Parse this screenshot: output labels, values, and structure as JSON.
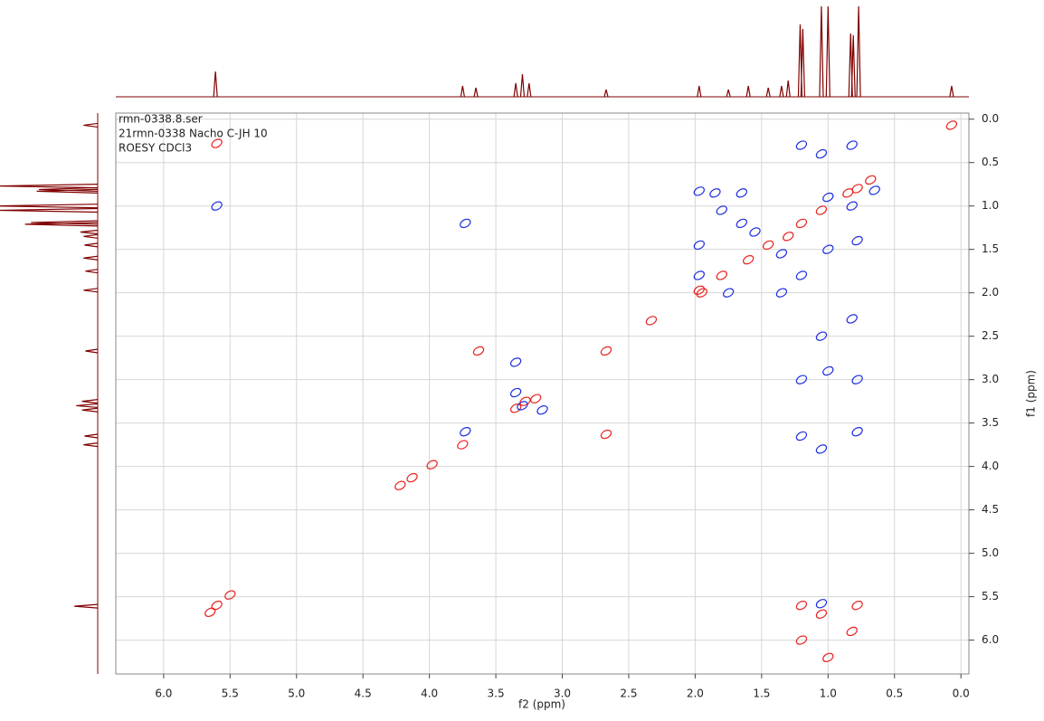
{
  "chart_data": {
    "type": "scatter",
    "info_lines": [
      "rmn-0338.8.ser",
      "21rmn-0338 Nacho C-JH 10",
      "ROESY CDCl3"
    ],
    "x_label": "f2 (ppm)",
    "y_label": "f1 (ppm)",
    "xlim": [
      6.36,
      -0.06
    ],
    "ylim": [
      -0.07,
      6.39
    ],
    "xticks": [
      {
        "value": 6,
        "label": "6.0"
      },
      {
        "value": 5.5,
        "label": "5.5"
      },
      {
        "value": 5,
        "label": "5.0"
      },
      {
        "value": 4.5,
        "label": "4.5"
      },
      {
        "value": 4,
        "label": "4.0"
      },
      {
        "value": 3.5,
        "label": "3.5"
      },
      {
        "value": 3,
        "label": "3.0"
      },
      {
        "value": 2.5,
        "label": "2.5"
      },
      {
        "value": 2,
        "label": "2.0"
      },
      {
        "value": 1.5,
        "label": "1.5"
      },
      {
        "value": 1,
        "label": "1.0"
      },
      {
        "value": 0.5,
        "label": "0.5"
      },
      {
        "value": 0,
        "label": "0.0"
      }
    ],
    "yticks": [
      {
        "value": 0,
        "label": "0.0"
      },
      {
        "value": 0.5,
        "label": "0.5"
      },
      {
        "value": 1,
        "label": "1.0"
      },
      {
        "value": 1.5,
        "label": "1.5"
      },
      {
        "value": 2,
        "label": "2.0"
      },
      {
        "value": 2.5,
        "label": "2.5"
      },
      {
        "value": 3,
        "label": "3.0"
      },
      {
        "value": 3.5,
        "label": "3.5"
      },
      {
        "value": 4,
        "label": "4.0"
      },
      {
        "value": 4.5,
        "label": "4.5"
      },
      {
        "value": 5,
        "label": "5.0"
      },
      {
        "value": 5.5,
        "label": "5.5"
      },
      {
        "value": 6,
        "label": "6.0"
      }
    ],
    "grid": true,
    "series": [
      {
        "color": "#e8231f",
        "x": [
          5.6,
          5.5,
          5.65,
          5.6,
          4.22,
          4.13,
          3.98,
          3.75,
          3.63,
          2.67,
          2.67,
          3.35,
          3.28,
          3.2,
          2.33,
          1.97,
          1.95,
          1.8,
          1.6,
          1.45,
          1.3,
          1.2,
          1.05,
          0.85,
          0.78,
          0.07,
          0.68,
          1.2,
          1.2,
          1.05,
          1.0,
          0.82,
          0.78
        ],
        "values": [
          0.28,
          5.48,
          5.68,
          5.6,
          4.22,
          4.13,
          3.98,
          3.75,
          2.67,
          2.67,
          3.63,
          3.33,
          3.25,
          3.22,
          2.32,
          1.97,
          2.0,
          1.8,
          1.62,
          1.45,
          1.35,
          1.2,
          1.05,
          0.85,
          0.8,
          0.07,
          0.7,
          5.6,
          6.0,
          5.7,
          6.2,
          5.9,
          5.6
        ]
      },
      {
        "color": "#1f2fe0",
        "x": [
          5.6,
          3.73,
          3.73,
          3.35,
          3.35,
          3.3,
          3.15,
          1.97,
          1.97,
          1.97,
          1.85,
          1.8,
          1.75,
          1.65,
          1.65,
          1.55,
          1.35,
          1.35,
          1.2,
          1.2,
          1.05,
          1.0,
          0.82,
          0.78,
          1.05,
          0.65,
          1.2,
          1.2,
          1.05,
          1.05,
          1.0,
          1.0,
          0.82,
          0.82,
          0.78,
          0.78
        ],
        "values": [
          1.0,
          1.2,
          3.6,
          2.8,
          3.15,
          3.3,
          3.35,
          0.83,
          1.45,
          1.8,
          0.85,
          1.05,
          2.0,
          0.85,
          1.2,
          1.3,
          1.55,
          2.0,
          3.0,
          3.65,
          2.5,
          1.5,
          1.0,
          3.0,
          5.58,
          0.82,
          0.3,
          1.8,
          0.4,
          3.8,
          0.9,
          2.9,
          0.3,
          2.3,
          1.4,
          3.6
        ]
      }
    ],
    "projection": {
      "color": "#800000",
      "x": [
        5.61,
        3.75,
        3.65,
        3.35,
        3.3,
        3.25,
        2.67,
        1.97,
        1.75,
        1.6,
        1.45,
        1.35,
        1.3,
        1.21,
        1.19,
        1.05,
        1.0,
        0.83,
        0.81,
        0.77,
        0.07
      ],
      "values": [
        0.28,
        0.12,
        0.1,
        0.15,
        0.25,
        0.15,
        0.08,
        0.12,
        0.08,
        0.12,
        0.1,
        0.12,
        0.18,
        0.8,
        0.75,
        1.0,
        1.0,
        0.7,
        0.68,
        1.0,
        0.12
      ]
    }
  }
}
